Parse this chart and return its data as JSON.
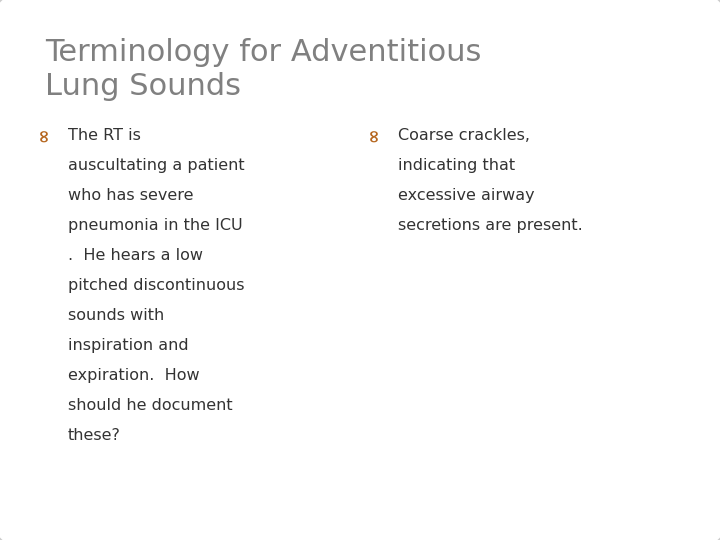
{
  "title_line1": "Terminology for Adventitious",
  "title_line2": "Lung Sounds",
  "title_color": "#808080",
  "title_fontsize": 22,
  "background_color": "#ffffff",
  "border_color": "#cccccc",
  "bullet_color": "#b5651d",
  "left_bullet_lines": [
    "The RT is",
    "auscultating a patient",
    "who has severe",
    "pneumonia in the ICU",
    ".  He hears a low",
    "pitched discontinuous",
    "sounds with",
    "inspiration and",
    "expiration.  How",
    "should he document",
    "these?"
  ],
  "right_bullet_lines": [
    "Coarse crackles,",
    "indicating that",
    "excessive airway",
    "secretions are present."
  ],
  "text_color": "#333333",
  "text_fontsize": 11.5,
  "font_family": "DejaVu Sans"
}
